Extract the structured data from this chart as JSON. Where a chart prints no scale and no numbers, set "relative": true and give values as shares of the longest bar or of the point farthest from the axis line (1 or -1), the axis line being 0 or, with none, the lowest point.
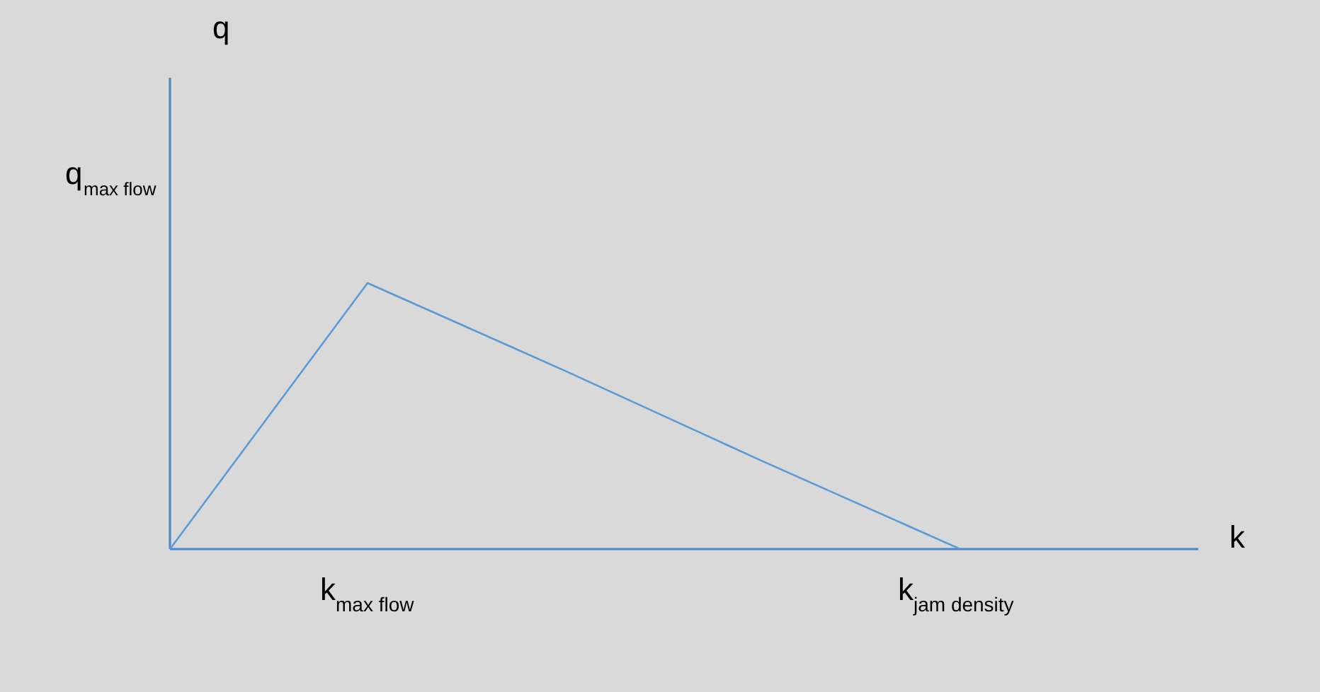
{
  "chart_data": {
    "type": "line",
    "relative": true,
    "xlabel": "k",
    "ylabel": "q",
    "categories": [
      null,
      "k$_{max flow}$",
      null,
      null,
      "k$_{jam density}$"
    ],
    "series": [
      {
        "color": "#5b9bd5",
        "values": [
          0,
          1,
          0.67,
          0.33,
          0
        ]
      }
    ],
    "annotations": [
      "q$_{max flow}$"
    ],
    "marker": "none",
    "line_style": "solid"
  }
}
